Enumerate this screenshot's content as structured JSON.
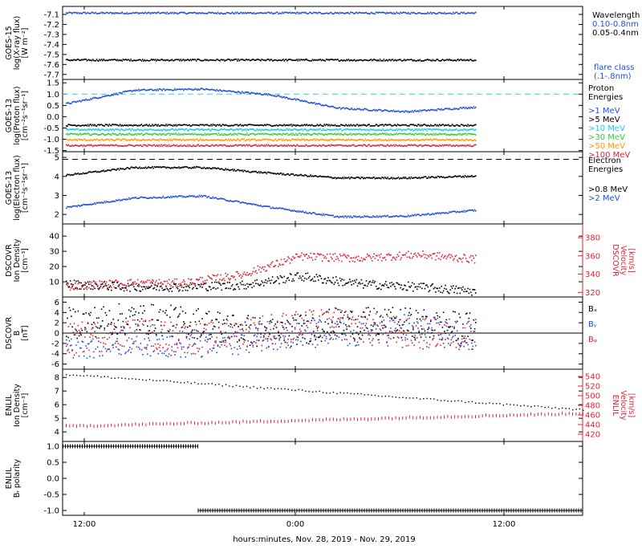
{
  "colors": {
    "black": "#000000",
    "blue": "#1f4fd8",
    "cyan": "#19c8e6",
    "green": "#33cc33",
    "orange": "#ff9900",
    "red": "#dd2233",
    "dashed_cyan": "#33ccdd"
  },
  "x_axis": {
    "ticks": [
      "12:00",
      "0:00",
      "12:00"
    ],
    "label": "hours:minutes, Nov. 28, 2019 - Nov. 29, 2019"
  },
  "chart_data": [
    {
      "type": "scatter",
      "ylabel": [
        "GOES-15",
        "log(X-ray flux)",
        "[W m⁻²]"
      ],
      "ylim": [
        -7.75,
        -7.02
      ],
      "y_ticks": [
        "-7.1",
        "-7.2",
        "-7.3",
        "-7.4",
        "-7.5",
        "-7.6",
        "-7.7"
      ],
      "legend_title": "Wavelength",
      "series": [
        {
          "name": "0.10-0.8nm",
          "color": "blue",
          "level": -7.08,
          "trend": [
            0,
            0
          ]
        },
        {
          "name": "0.05-0.4nm",
          "color": "black",
          "level": -7.55,
          "trend": [
            0,
            0
          ]
        }
      ],
      "extra_labels": [
        {
          "text": "flare class",
          "color": "blue"
        },
        {
          "text": "(.1-.8nm)",
          "color": "blue"
        }
      ]
    },
    {
      "type": "scatter",
      "ylabel": [
        "GOES-13",
        "log(Proton flux)",
        "[cm⁻²s⁻¹sr⁻¹]"
      ],
      "ylim": [
        -1.55,
        1.65
      ],
      "y_ticks": [
        "1.5",
        "1.0",
        "0.5",
        "0.0",
        "-0.5",
        "-1.0",
        "-1.5"
      ],
      "legend_title": [
        "Proton",
        "Energies"
      ],
      "threshold": 1.0,
      "series": [
        {
          "name": ">1 MeV",
          "color": "blue",
          "level": 1.1,
          "trend": [
            0.6,
            1.2,
            1.25,
            1.0,
            0.4,
            0.25,
            0.45
          ]
        },
        {
          "name": ">5 MeV",
          "color": "black",
          "level": -0.35,
          "trend": [
            0,
            0
          ]
        },
        {
          "name": ">10 MeV",
          "color": "cyan",
          "level": -0.55,
          "trend": [
            0,
            0
          ]
        },
        {
          "name": ">30 MeV",
          "color": "green",
          "level": -0.75,
          "trend": [
            0,
            0
          ]
        },
        {
          "name": ">50 MeV",
          "color": "orange",
          "level": -1.0,
          "trend": [
            0,
            0
          ]
        },
        {
          "name": ">100 MeV",
          "color": "red",
          "level": -1.25,
          "trend": [
            0,
            0
          ]
        }
      ]
    },
    {
      "type": "scatter",
      "ylabel": [
        "GOES-13",
        "log(Electron flux)",
        "[cm⁻²s⁻¹sr⁻¹]"
      ],
      "ylim": [
        1.5,
        5.3
      ],
      "y_ticks": [
        "5",
        "4",
        "3",
        "2"
      ],
      "legend_title": [
        "Electron",
        "Energies"
      ],
      "threshold": 4.9,
      "series": [
        {
          "name": ">0.8 MeV",
          "color": "black",
          "level": 4.3,
          "trend": [
            4.1,
            4.5,
            4.5,
            4.2,
            3.95,
            3.95,
            4.05
          ]
        },
        {
          "name": ">2 MeV",
          "color": "blue",
          "level": 2.5,
          "trend": [
            2.4,
            2.9,
            3.0,
            2.4,
            1.9,
            1.95,
            2.25
          ]
        }
      ]
    },
    {
      "type": "scatter",
      "ylabel": [
        "DSCOVR",
        "Ion Density",
        "[cm⁻³]"
      ],
      "ylim": [
        0,
        48
      ],
      "y_ticks": [
        "40",
        "30",
        "20",
        "10"
      ],
      "right_axis": {
        "label": [
          "DSCOVR",
          "Velocity",
          "[km/s]"
        ],
        "ylim": [
          315,
          395
        ],
        "y_ticks": [
          "380",
          "360",
          "340",
          "320"
        ],
        "color": "red"
      },
      "series": [
        {
          "name": "Ion Density",
          "color": "black",
          "level": 7,
          "trend": [
            9,
            7,
            7,
            8,
            14,
            9,
            7,
            4
          ]
        },
        {
          "name": "Velocity",
          "color": "red",
          "axis": "right",
          "level": 330,
          "trend": [
            327,
            331,
            331,
            340,
            360,
            358,
            362,
            357
          ]
        }
      ]
    },
    {
      "type": "scatter",
      "ylabel": [
        "DSCOVR",
        "B",
        "[nT]"
      ],
      "ylim": [
        -7,
        7
      ],
      "y_ticks": [
        "6",
        "4",
        "2",
        "0",
        "-2",
        "-4",
        "-6"
      ],
      "series": [
        {
          "name": "Bₓ",
          "color": "black",
          "level": 2,
          "trend": [
            2,
            3,
            2,
            0,
            2,
            2,
            1
          ]
        },
        {
          "name": "Bᵧ",
          "color": "blue",
          "level": -1,
          "trend": [
            -2,
            -1,
            -2,
            0,
            0,
            1,
            -1
          ]
        },
        {
          "name": "Bᵩ",
          "color": "red",
          "level": 0,
          "trend": [
            -1,
            0,
            -1,
            1,
            2,
            0,
            0
          ]
        }
      ]
    },
    {
      "type": "scatter",
      "ylabel": [
        "ENLIL",
        "Ion Density",
        "[cm⁻³]"
      ],
      "ylim": [
        3.3,
        8.6
      ],
      "y_ticks": [
        "8",
        "7",
        "6",
        "5",
        "4"
      ],
      "right_axis": {
        "label": [
          "ENLIL",
          "Velocity",
          "[km/s]"
        ],
        "ylim": [
          405,
          555
        ],
        "y_ticks": [
          "540",
          "520",
          "500",
          "480",
          "460",
          "440",
          "420"
        ],
        "color": "red"
      },
      "series": [
        {
          "name": "Ion Density",
          "color": "black",
          "level": 8,
          "trend": [
            8.2,
            5.6
          ]
        },
        {
          "name": "Velocity",
          "color": "red",
          "axis": "right",
          "level": 440,
          "trend": [
            438,
            465
          ]
        }
      ]
    },
    {
      "type": "scatter",
      "ylabel": [
        "ENLIL",
        "Bᵣ polarity"
      ],
      "ylim": [
        -1.15,
        1.15
      ],
      "y_ticks": [
        "1.0",
        "0.5",
        "0.0",
        "-0.5",
        "-1.0"
      ],
      "series": [
        {
          "name": "Bᵣ polarity",
          "color": "black",
          "level": 1,
          "segments": [
            [
              0,
              0.26,
              1
            ],
            [
              0.26,
              1,
              -1
            ]
          ]
        }
      ]
    }
  ]
}
